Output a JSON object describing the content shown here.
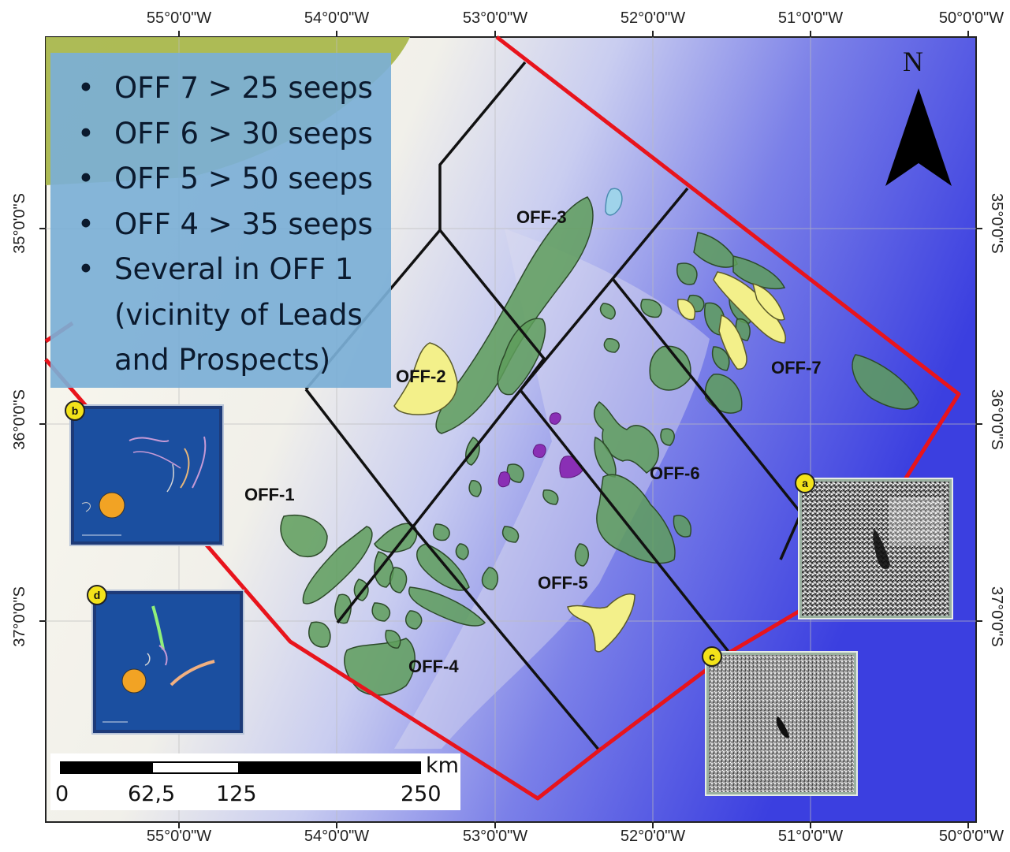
{
  "legend": {
    "items": [
      {
        "bullet": "•",
        "lines": [
          "OFF 7 > 25 seeps"
        ]
      },
      {
        "bullet": "•",
        "lines": [
          "OFF 6 > 30 seeps"
        ]
      },
      {
        "bullet": "•",
        "lines": [
          "OFF 5 > 50 seeps"
        ]
      },
      {
        "bullet": "•",
        "lines": [
          "OFF 4 > 35 seeps"
        ]
      },
      {
        "bullet": "•",
        "lines": [
          "Several in OFF 1",
          "(vicinity of Leads",
          "and Prospects)"
        ]
      }
    ]
  },
  "zones": {
    "off1": "OFF-1",
    "off2": "OFF-2",
    "off3": "OFF-3",
    "off4": "OFF-4",
    "off5": "OFF-5",
    "off6": "OFF-6",
    "off7": "OFF-7"
  },
  "north_arrow": {
    "label": "N",
    "icon": "north-arrow-icon"
  },
  "longitude_labels": [
    "55°0'0\"W",
    "54°0'0\"W",
    "53°0'0\"W",
    "52°0'0\"W",
    "51°0'0\"W",
    "50°0'0\"W"
  ],
  "latitude_labels": [
    "35°0'0\"S",
    "36°0'0\"S",
    "37°0'0\"S"
  ],
  "scale_bar": {
    "unit": "km",
    "ticks": [
      "0",
      "62,5",
      "125",
      "250"
    ]
  },
  "insets": {
    "tag_b": "b",
    "tag_d": "d",
    "tag_a": "a",
    "tag_c": "c"
  },
  "colors": {
    "block_boundary": "#e8141c",
    "block_divider": "#111111",
    "seep_polygon": "#5e9e5a",
    "lead_polygon": "#f3f08a",
    "anomaly": "#8a2fb5",
    "legend_background": "#7bafd6",
    "deep_water": "#3d41e0",
    "shelf": "#f5f3e4",
    "land": "#a8b84c"
  }
}
